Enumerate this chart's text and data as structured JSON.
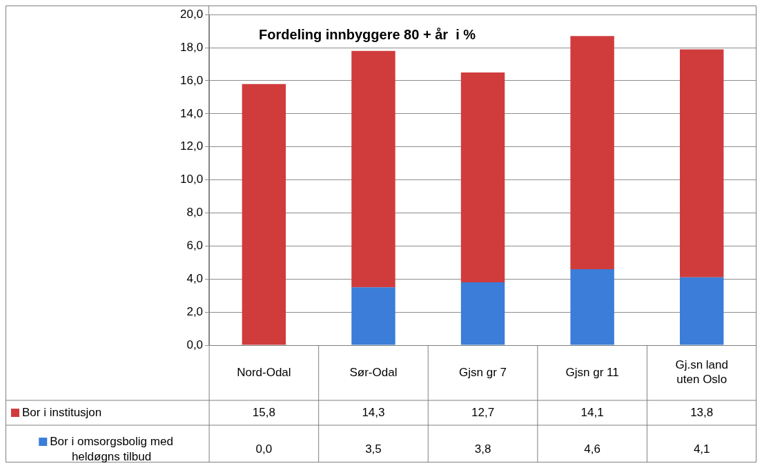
{
  "chart_data": {
    "type": "bar",
    "title": "Fordeling innbyggere 80 + år  i %",
    "categories": [
      "Nord-Odal",
      "Sør-Odal",
      "Gjsn gr 7",
      "Gjsn gr 11",
      "Gj.sn land uten Oslo"
    ],
    "series": [
      {
        "name": "Bor i omsorgsbolig med heldøgns tilbud",
        "color": "#3b7dd8",
        "values": [
          0.0,
          3.5,
          3.8,
          4.6,
          4.1
        ],
        "value_labels": [
          "0,0",
          "3,5",
          "3,8",
          "4,6",
          "4,1"
        ]
      },
      {
        "name": "Bor i institusjon",
        "color": "#d03c3c",
        "values": [
          15.8,
          14.3,
          12.7,
          14.1,
          13.8
        ],
        "value_labels": [
          "15,8",
          "14,3",
          "12,7",
          "14,1",
          "13,8"
        ]
      }
    ],
    "stacked": true,
    "ylim": [
      0,
      20
    ],
    "yticks": [
      {
        "value": 0,
        "label": "0,0"
      },
      {
        "value": 2,
        "label": "2,0"
      },
      {
        "value": 4,
        "label": "4,0"
      },
      {
        "value": 6,
        "label": "6,0"
      },
      {
        "value": 8,
        "label": "8,0"
      },
      {
        "value": 10,
        "label": "10,0"
      },
      {
        "value": 12,
        "label": "12,0"
      },
      {
        "value": 14,
        "label": "14,0"
      },
      {
        "value": 16,
        "label": "16,0"
      },
      {
        "value": 18,
        "label": "18,0"
      },
      {
        "value": 20,
        "label": "20,0"
      }
    ],
    "grid": "y",
    "legend": "bottom left"
  }
}
